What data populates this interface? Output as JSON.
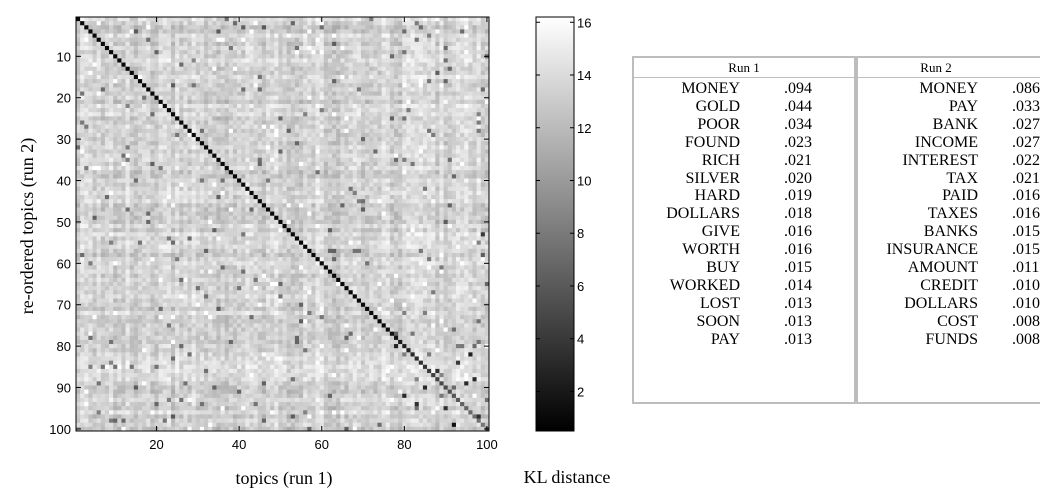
{
  "chart_data": [
    {
      "type": "heatmap",
      "xlabel": "topics (run 1)",
      "ylabel": "re-ordered topics (run 2)",
      "xlim": [
        1,
        100
      ],
      "ylim": [
        1,
        100
      ],
      "x_ticks": [
        20,
        40,
        60,
        80,
        100
      ],
      "y_ticks": [
        10,
        20,
        30,
        40,
        50,
        60,
        70,
        80,
        90,
        100
      ],
      "y_axis_inverted": true,
      "colormap": "gray",
      "grid": false,
      "colorbar": {
        "label": "KL distance",
        "ticks": [
          2,
          4,
          6,
          8,
          10,
          12,
          14,
          16
        ],
        "range": [
          0.5,
          16.2
        ],
        "low_color": "#000000",
        "high_color": "#ffffff"
      },
      "diagonal_value": 1.0,
      "typical_offdiagonal_value": 13.5,
      "diagonal_fade": {
        "start_topic": 75,
        "end_value": 8.0
      },
      "highlighted_offdiagonal": [
        {
          "x": 78,
          "y": 80,
          "value": 2.5
        },
        {
          "x": 80,
          "y": 92,
          "value": 3.0
        },
        {
          "x": 83,
          "y": 94,
          "value": 3.5
        },
        {
          "x": 85,
          "y": 90,
          "value": 3.0
        },
        {
          "x": 88,
          "y": 86,
          "value": 3.5
        },
        {
          "x": 90,
          "y": 95,
          "value": 3.5
        },
        {
          "x": 92,
          "y": 99,
          "value": 1.5
        },
        {
          "x": 93,
          "y": 84,
          "value": 4.0
        },
        {
          "x": 95,
          "y": 89,
          "value": 3.0
        },
        {
          "x": 96,
          "y": 82,
          "value": 2.5
        },
        {
          "x": 97,
          "y": 88,
          "value": 3.0
        },
        {
          "x": 98,
          "y": 97,
          "value": 3.5
        },
        {
          "x": 99,
          "y": 53,
          "value": 4.0
        }
      ]
    },
    {
      "type": "table",
      "columns": [
        "Run 1",
        "Run 2"
      ],
      "run1": [
        {
          "word": "MONEY",
          "prob": ".094"
        },
        {
          "word": "GOLD",
          "prob": ".044"
        },
        {
          "word": "POOR",
          "prob": ".034"
        },
        {
          "word": "FOUND",
          "prob": ".023"
        },
        {
          "word": "RICH",
          "prob": ".021"
        },
        {
          "word": "SILVER",
          "prob": ".020"
        },
        {
          "word": "HARD",
          "prob": ".019"
        },
        {
          "word": "DOLLARS",
          "prob": ".018"
        },
        {
          "word": "GIVE",
          "prob": ".016"
        },
        {
          "word": "WORTH",
          "prob": ".016"
        },
        {
          "word": "BUY",
          "prob": ".015"
        },
        {
          "word": "WORKED",
          "prob": ".014"
        },
        {
          "word": "LOST",
          "prob": ".013"
        },
        {
          "word": "SOON",
          "prob": ".013"
        },
        {
          "word": "PAY",
          "prob": ".013"
        }
      ],
      "run2": [
        {
          "word": "MONEY",
          "prob": ".086"
        },
        {
          "word": "PAY",
          "prob": ".033"
        },
        {
          "word": "BANK",
          "prob": ".027"
        },
        {
          "word": "INCOME",
          "prob": ".027"
        },
        {
          "word": "INTEREST",
          "prob": ".022"
        },
        {
          "word": "TAX",
          "prob": ".021"
        },
        {
          "word": "PAID",
          "prob": ".016"
        },
        {
          "word": "TAXES",
          "prob": ".016"
        },
        {
          "word": "BANKS",
          "prob": ".015"
        },
        {
          "word": "INSURANCE",
          "prob": ".015"
        },
        {
          "word": "AMOUNT",
          "prob": ".011"
        },
        {
          "word": "CREDIT",
          "prob": ".010"
        },
        {
          "word": "DOLLARS",
          "prob": ".010"
        },
        {
          "word": "COST",
          "prob": ".008"
        },
        {
          "word": "FUNDS",
          "prob": ".008"
        }
      ]
    }
  ]
}
